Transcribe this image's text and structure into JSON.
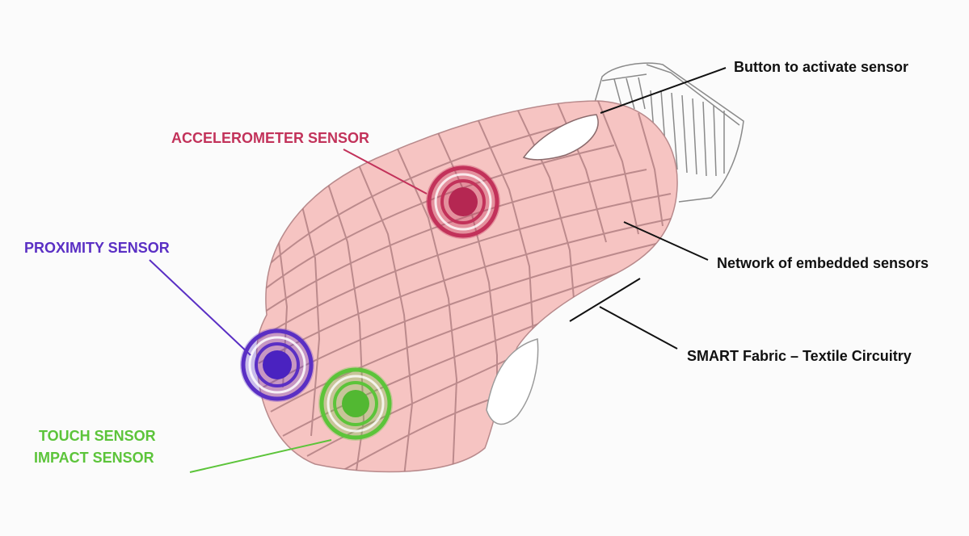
{
  "labels": {
    "accelerometer": "ACCELEROMETER SENSOR",
    "proximity": "PROXIMITY SENSOR",
    "touch": "TOUCH SENSOR",
    "impact": "IMPACT SENSOR",
    "button": "Button to activate sensor",
    "network": "Network of embedded sensors",
    "fabric": "SMART Fabric – Textile Circuitry"
  },
  "colors": {
    "accelerometer": "#c2325a",
    "proximity": "#5a2fc4",
    "touch": "#5cc43a",
    "body_fill": "#f6c4c2",
    "mesh": "#a8777a",
    "leader": "#111111"
  }
}
